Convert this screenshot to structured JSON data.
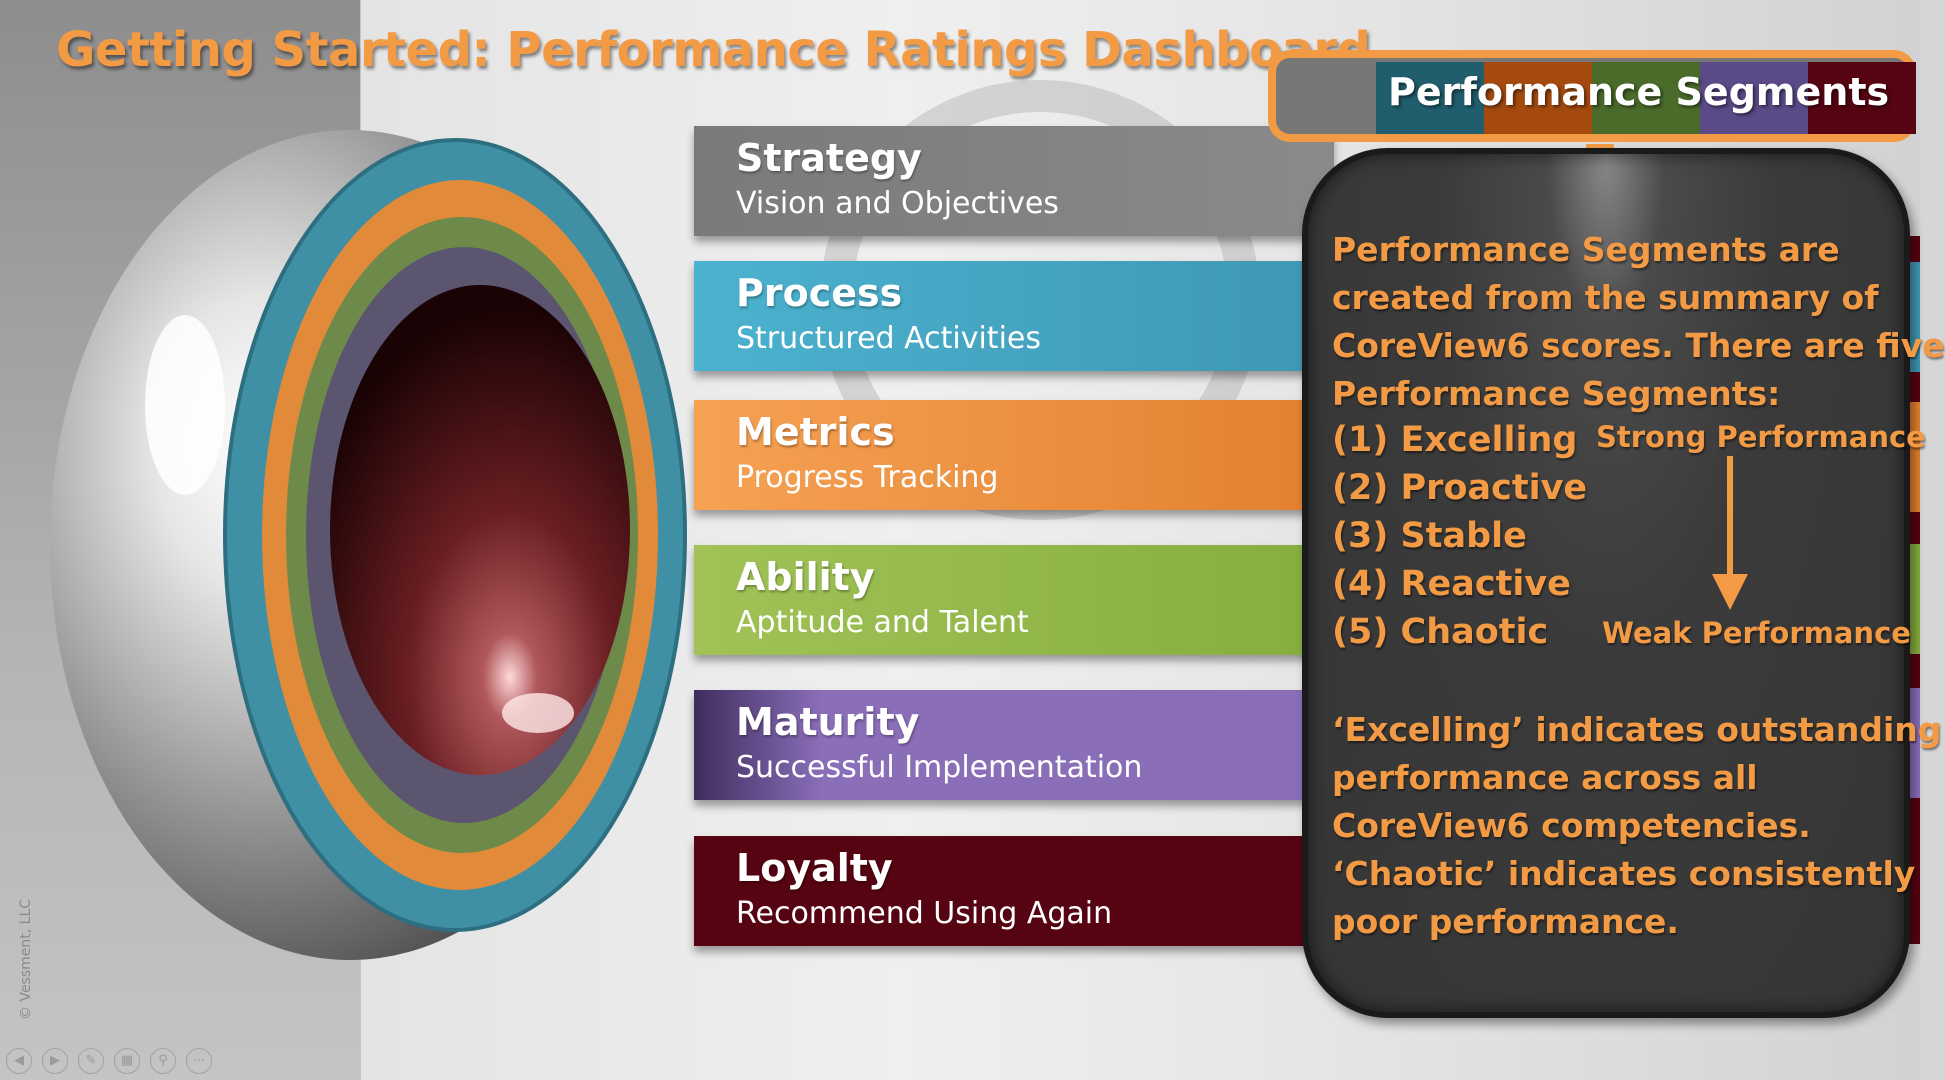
{
  "title": "Getting Started: Performance Ratings Dashboard",
  "bars": [
    {
      "title": "Strategy",
      "subtitle": "Vision and Objectives"
    },
    {
      "title": "Process",
      "subtitle": "Structured Activities"
    },
    {
      "title": "Metrics",
      "subtitle": "Progress Tracking"
    },
    {
      "title": "Ability",
      "subtitle": "Aptitude and Talent"
    },
    {
      "title": "Maturity",
      "subtitle": "Successful Implementation"
    },
    {
      "title": "Loyalty",
      "subtitle": "Recommend Using Again"
    }
  ],
  "segments_header": "Performance Segments",
  "segment_colors": [
    "#205e6e",
    "#a54a0f",
    "#4a6b2a",
    "#5a4a88",
    "#560312"
  ],
  "info": {
    "intro_lines": [
      "Performance Segments are",
      "created from the summary of",
      "CoreView6 scores. There are five",
      "Performance Segments:"
    ],
    "segments": [
      "(1) Excelling",
      "(2) Proactive",
      "(3) Stable",
      "(4) Reactive",
      "(5) Chaotic"
    ],
    "strong_label": "Strong Performance",
    "weak_label": "Weak Performance",
    "outro_lines": [
      "‘Excelling’ indicates outstanding",
      "performance across all",
      "CoreView6 competencies.",
      "‘Chaotic’ indicates consistently",
      "poor performance."
    ]
  },
  "copyright": "© Vessment, LLC",
  "nav_icons": [
    "back-icon",
    "play-icon",
    "pen-icon",
    "slides-icon",
    "zoom-icon",
    "more-icon"
  ],
  "colors": {
    "accent_orange": "#f39a45",
    "strategy": "#7f7f7f",
    "process": "#4bb2cf",
    "metrics": "#f39a45",
    "ability": "#9bbb59",
    "maturity": "#8064a2",
    "loyalty": "#560312"
  }
}
